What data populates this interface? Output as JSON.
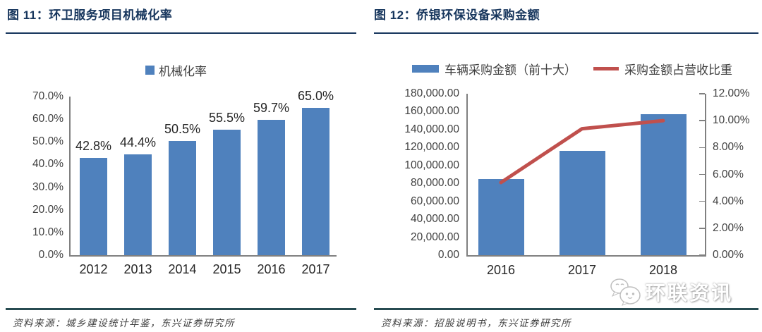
{
  "panels": [
    {
      "title": "图 11：环卫服务项目机械化率",
      "source": "资料来源：城乡建设统计年鉴，东兴证券研究所"
    },
    {
      "title": "图 12：侨银环保设备采购金额",
      "source": "资料来源：招股说明书，东兴证券研究所"
    }
  ],
  "watermark": {
    "text": "环联资讯",
    "icon": "chat-bubbles-icon"
  },
  "colors": {
    "bar_blue": "#4f81bd",
    "line_red": "#c0504d",
    "title_navy": "#17365d",
    "divider_teal": "#274b51",
    "axis_gray": "#808080",
    "label_dark": "#262626"
  },
  "chart_data": [
    {
      "type": "bar",
      "title": "环卫服务项目机械化率",
      "legend": [
        "机械化率"
      ],
      "legend_position": "top",
      "categories": [
        "2012",
        "2013",
        "2014",
        "2015",
        "2016",
        "2017"
      ],
      "values": [
        42.8,
        44.4,
        50.5,
        55.5,
        59.7,
        65.0
      ],
      "value_labels": [
        "42.8%",
        "44.4%",
        "50.5%",
        "55.5%",
        "59.7%",
        "65.0%"
      ],
      "xlabel": "",
      "ylabel": "",
      "ylim": [
        0,
        70
      ],
      "ytick_labels": [
        "70.0%",
        "60.0%",
        "50.0%",
        "40.0%",
        "30.0%",
        "20.0%",
        "10.0%",
        "0.0%"
      ],
      "grid": false
    },
    {
      "type": "bar+line",
      "title": "侨银环保设备采购金额",
      "legend_position": "top",
      "categories": [
        "2016",
        "2017",
        "2018"
      ],
      "series": [
        {
          "name": "车辆采购金额（前十大）",
          "type": "bar",
          "axis": "left",
          "values": [
            85000,
            116000,
            157000
          ]
        },
        {
          "name": "采购金额占营收比重",
          "type": "line",
          "axis": "right",
          "values": [
            5.4,
            9.4,
            10.0
          ]
        }
      ],
      "left_ylim": [
        0,
        180000
      ],
      "left_ytick_labels": [
        "180,000.00",
        "160,000.00",
        "140,000.00",
        "120,000.00",
        "100,000.00",
        "80,000.00",
        "60,000.00",
        "40,000.00",
        "20,000.00",
        "0.00"
      ],
      "right_ylim": [
        0,
        12
      ],
      "right_ytick_labels": [
        "12.00%",
        "10.00%",
        "8.00%",
        "6.00%",
        "4.00%",
        "2.00%",
        "0.00%"
      ],
      "grid": false
    }
  ]
}
